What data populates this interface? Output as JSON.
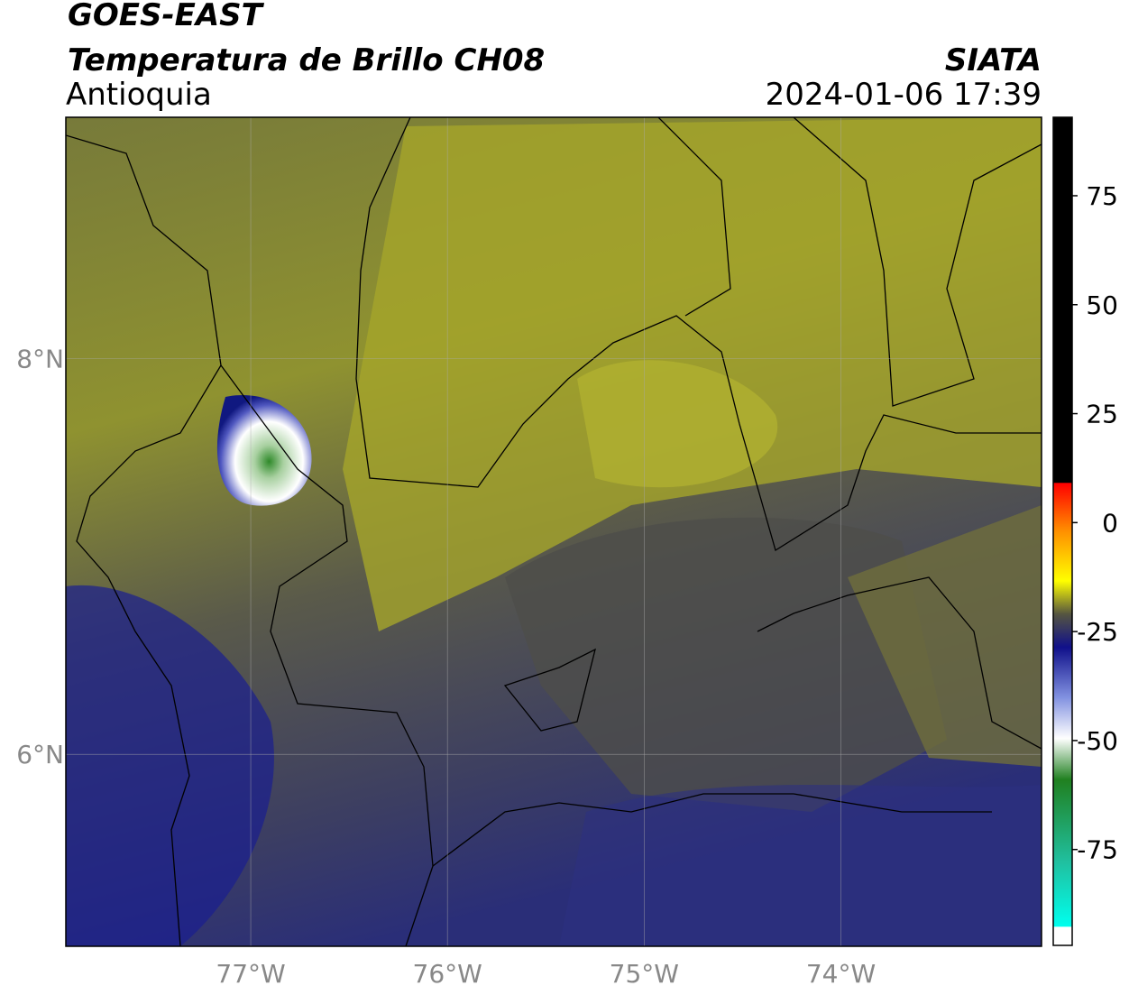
{
  "header": {
    "satellite": "GOES-EAST",
    "title": "Temperatura de Brillo CH08",
    "region": "Antioquia",
    "source": "SIATA",
    "datetime": "2024-01-06 17:39"
  },
  "map": {
    "lonlim": [
      -77.94,
      -72.98
    ],
    "latlim": [
      5.03,
      9.22
    ],
    "lon_ticks": [
      {
        "value": -77,
        "label": "77°W"
      },
      {
        "value": -76,
        "label": "76°W"
      },
      {
        "value": -75,
        "label": "75°W"
      },
      {
        "value": -74,
        "label": "74°W"
      }
    ],
    "lat_ticks": [
      {
        "value": 8,
        "label": "8°N"
      },
      {
        "value": 6,
        "label": "6°N"
      }
    ],
    "grid": true
  },
  "colorbar": {
    "range": [
      -97,
      93
    ],
    "ticks": [
      75,
      50,
      25,
      0,
      -25,
      -50,
      -75
    ]
  }
}
